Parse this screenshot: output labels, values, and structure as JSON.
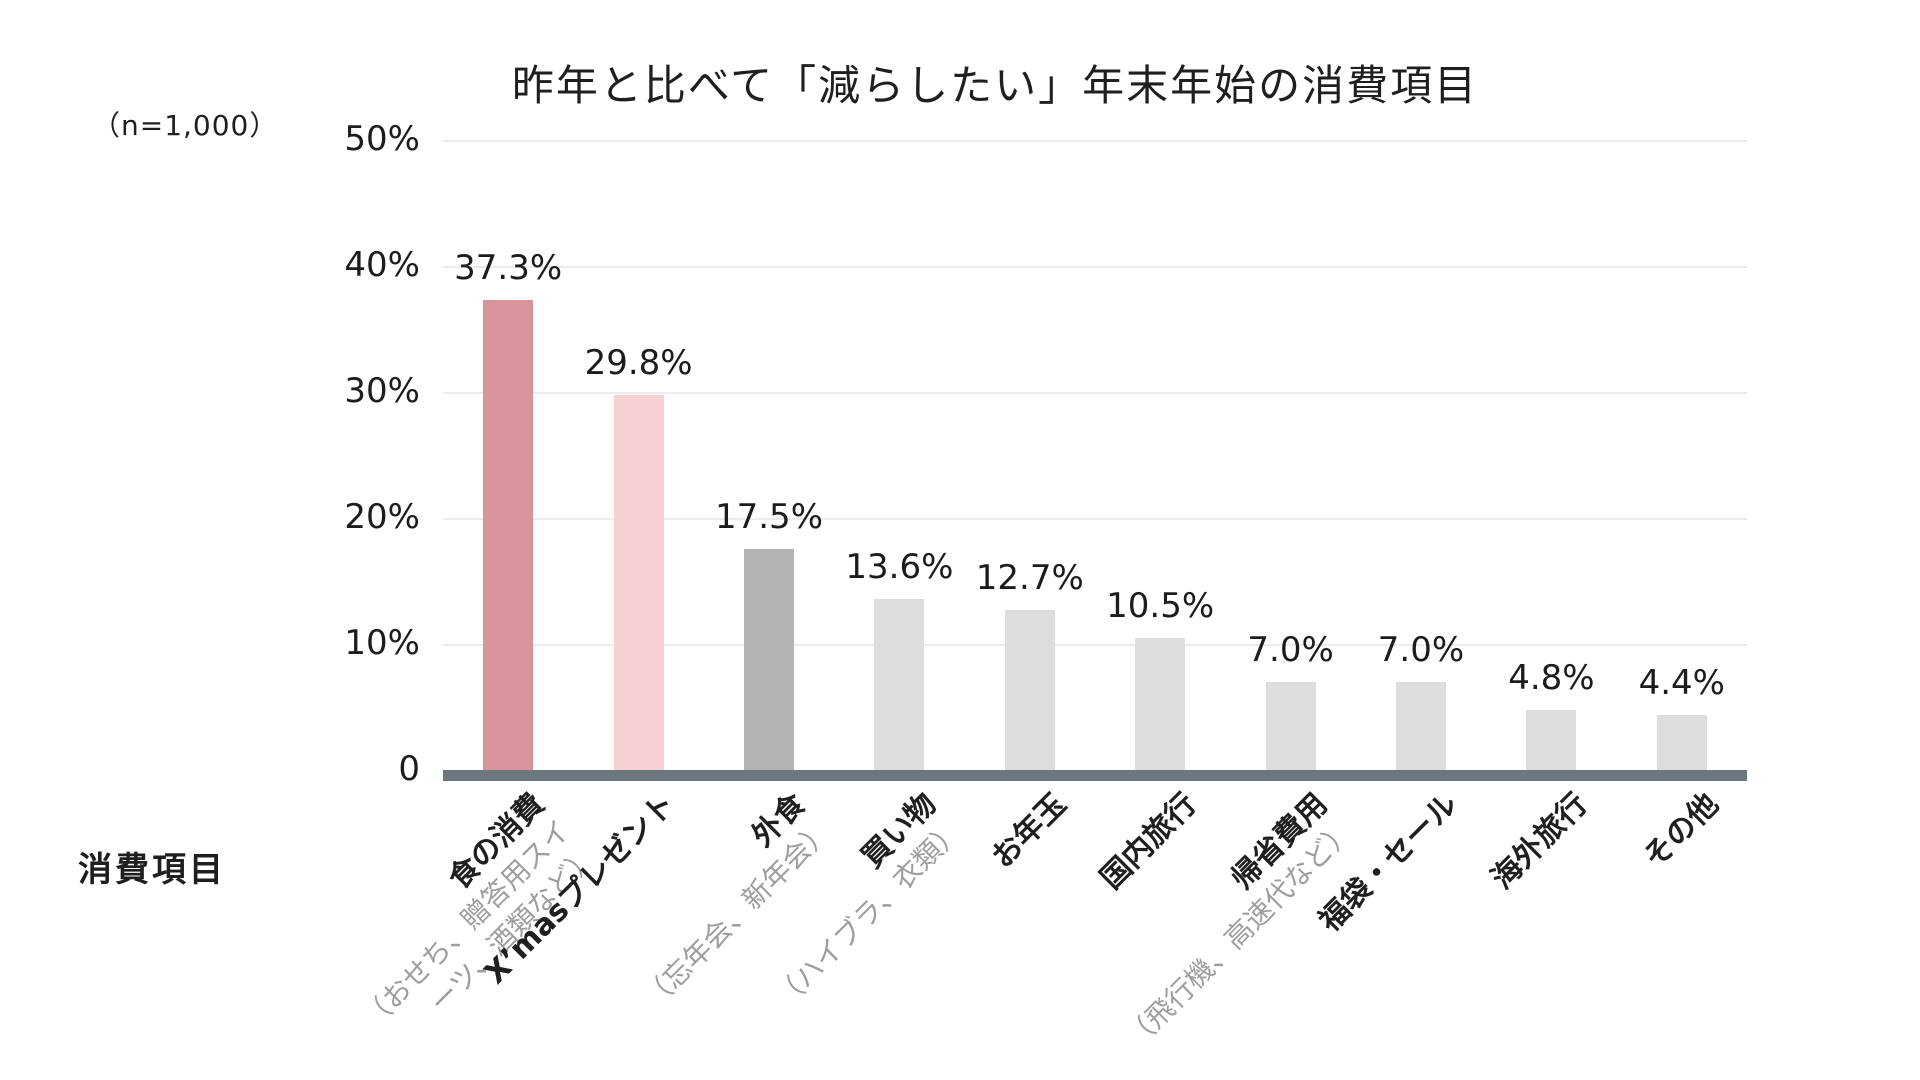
{
  "chart_data": {
    "type": "bar",
    "title": "昨年と比べて「減らしたい」年末年始の消費項目",
    "sample_size_label": "（n=1,000）",
    "xlabel": "消費項目",
    "ylabel": "",
    "ylim": [
      0,
      50
    ],
    "grid": "horizontal-light",
    "yticks": [
      {
        "value": 50,
        "label": "50%"
      },
      {
        "value": 40,
        "label": "40%"
      },
      {
        "value": 30,
        "label": "30%"
      },
      {
        "value": 20,
        "label": "20%"
      },
      {
        "value": 10,
        "label": "10%"
      },
      {
        "value": 0,
        "label": "0"
      }
    ],
    "categories": [
      {
        "label": "食の消費",
        "sublabel_lines": [
          "（おせち、贈答用スイ",
          "ーツ、酒類など）"
        ]
      },
      {
        "label": "X’masプレゼント",
        "sublabel_lines": []
      },
      {
        "label": "外食",
        "sublabel_lines": [
          "（忘年会、新年会）"
        ]
      },
      {
        "label": "買い物",
        "sublabel_lines": [
          "（ハイブラ、衣類）"
        ]
      },
      {
        "label": "お年玉",
        "sublabel_lines": []
      },
      {
        "label": "国内旅行",
        "sublabel_lines": []
      },
      {
        "label": "帰省費用",
        "sublabel_lines": [
          "（飛行機、高速代など）"
        ]
      },
      {
        "label": "福袋・セール",
        "sublabel_lines": []
      },
      {
        "label": "海外旅行",
        "sublabel_lines": []
      },
      {
        "label": "その他",
        "sublabel_lines": []
      }
    ],
    "values": [
      37.3,
      29.8,
      17.5,
      13.6,
      12.7,
      10.5,
      7.0,
      7.0,
      4.8,
      4.4
    ],
    "value_labels": [
      "37.3%",
      "29.8%",
      "17.5%",
      "13.6%",
      "12.7%",
      "10.5%",
      "7.0%",
      "7.0%",
      "4.8%",
      "4.4%"
    ],
    "bar_colors": [
      "#d9949b",
      "#f6d0d3",
      "#b3b3b3",
      "#dedddd",
      "#dedddd",
      "#dedddd",
      "#dedddd",
      "#dedddd",
      "#dedddd",
      "#dedddd"
    ],
    "colors": {
      "highlight_rose": "#d9949b",
      "highlight_pink": "#f6d0d3",
      "emphasis_gray": "#b3b3b3",
      "default_gray": "#dedddd",
      "axis_baseline": "#6d787e",
      "gridline": "#ececec",
      "text": "#1c1c1c",
      "sublabel_gray": "#9e9e9e"
    }
  }
}
